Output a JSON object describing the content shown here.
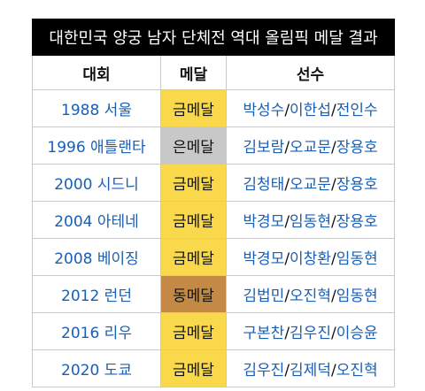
{
  "table": {
    "title": "대한민국 양궁 남자 단체전 역대 올림픽 메달 결과",
    "headers": {
      "games": "대회",
      "medal": "메달",
      "athletes": "선수"
    },
    "colors": {
      "gold": "#f9d94b",
      "silver": "#c8c8c8",
      "bronze": "#c48a45",
      "link": "#1a5fb4"
    },
    "rows": [
      {
        "games": "1988 서울",
        "medal": "금메달",
        "medal_type": "gold",
        "athletes": [
          "박성수",
          "이한섭",
          "전인수"
        ]
      },
      {
        "games": "1996 애틀랜타",
        "medal": "은메달",
        "medal_type": "silver",
        "athletes": [
          "김보람",
          "오교문",
          "장용호"
        ]
      },
      {
        "games": "2000 시드니",
        "medal": "금메달",
        "medal_type": "gold",
        "athletes": [
          "김청태",
          "오교문",
          "장용호"
        ]
      },
      {
        "games": "2004 아테네",
        "medal": "금메달",
        "medal_type": "gold",
        "athletes": [
          "박경모",
          "임동현",
          "장용호"
        ]
      },
      {
        "games": "2008 베이징",
        "medal": "금메달",
        "medal_type": "gold",
        "athletes": [
          "박경모",
          "이창환",
          "임동현"
        ]
      },
      {
        "games": "2012 런던",
        "medal": "동메달",
        "medal_type": "bronze",
        "athletes": [
          "김법민",
          "오진혁",
          "임동현"
        ]
      },
      {
        "games": "2016 리우",
        "medal": "금메달",
        "medal_type": "gold",
        "athletes": [
          "구본찬",
          "김우진",
          "이승윤"
        ]
      },
      {
        "games": "2020 도쿄",
        "medal": "금메달",
        "medal_type": "gold",
        "athletes": [
          "김우진",
          "김제덕",
          "오진혁"
        ]
      }
    ]
  }
}
